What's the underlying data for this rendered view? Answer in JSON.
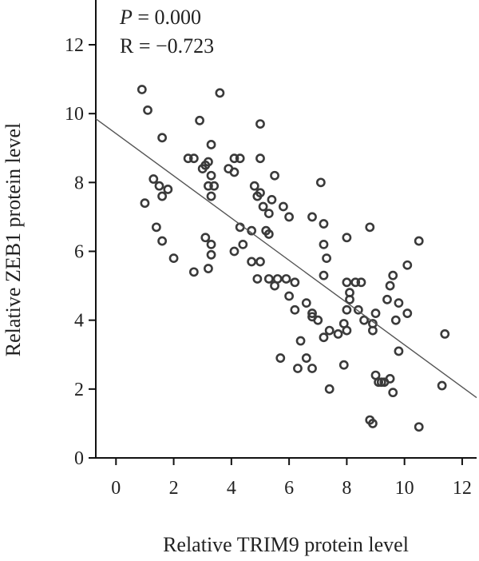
{
  "chart_data": {
    "type": "scatter",
    "xlabel": "Relative TRIM9 protein level",
    "ylabel": "Relative ZEB1 protein level",
    "xlim": [
      -0.7,
      12.5
    ],
    "ylim": [
      0,
      13.3
    ],
    "xticks": [
      0,
      2,
      4,
      6,
      8,
      10,
      12
    ],
    "yticks": [
      0,
      2,
      4,
      6,
      8,
      10,
      12
    ],
    "stats": {
      "p_symbol": "P",
      "p_value": " = 0.000",
      "r_text": "R = −0.723"
    },
    "fit_line": {
      "x0": -0.7,
      "y0": 9.85,
      "x1": 12.5,
      "y1": 1.75
    },
    "series": [
      {
        "points": [
          [
            0.9,
            10.7
          ],
          [
            1.1,
            10.1
          ],
          [
            1.6,
            9.3
          ],
          [
            2.9,
            9.8
          ],
          [
            3.6,
            10.6
          ],
          [
            5.0,
            9.7
          ],
          [
            1.0,
            7.4
          ],
          [
            1.3,
            8.1
          ],
          [
            1.5,
            7.9
          ],
          [
            1.6,
            7.6
          ],
          [
            1.8,
            7.8
          ],
          [
            1.4,
            6.7
          ],
          [
            1.6,
            6.3
          ],
          [
            2.0,
            5.8
          ],
          [
            2.5,
            8.7
          ],
          [
            2.7,
            8.7
          ],
          [
            3.0,
            8.4
          ],
          [
            3.1,
            8.5
          ],
          [
            3.2,
            8.6
          ],
          [
            3.3,
            9.1
          ],
          [
            3.3,
            8.2
          ],
          [
            3.2,
            7.9
          ],
          [
            3.4,
            7.9
          ],
          [
            3.3,
            7.6
          ],
          [
            3.1,
            6.4
          ],
          [
            3.3,
            6.2
          ],
          [
            3.3,
            5.9
          ],
          [
            3.2,
            5.5
          ],
          [
            2.7,
            5.4
          ],
          [
            3.9,
            8.4
          ],
          [
            4.1,
            8.7
          ],
          [
            4.3,
            8.7
          ],
          [
            4.1,
            8.3
          ],
          [
            4.1,
            6.0
          ],
          [
            4.3,
            6.7
          ],
          [
            4.4,
            6.2
          ],
          [
            4.7,
            6.6
          ],
          [
            4.7,
            5.7
          ],
          [
            5.0,
            5.7
          ],
          [
            4.9,
            5.2
          ],
          [
            4.9,
            7.6
          ],
          [
            4.8,
            7.9
          ],
          [
            5.0,
            7.7
          ],
          [
            5.0,
            8.7
          ],
          [
            5.1,
            7.3
          ],
          [
            5.3,
            7.1
          ],
          [
            5.3,
            6.5
          ],
          [
            5.2,
            6.6
          ],
          [
            5.4,
            7.5
          ],
          [
            5.5,
            8.2
          ],
          [
            5.8,
            7.3
          ],
          [
            6.0,
            7.0
          ],
          [
            5.3,
            5.2
          ],
          [
            5.6,
            5.2
          ],
          [
            5.9,
            5.2
          ],
          [
            6.2,
            5.1
          ],
          [
            5.5,
            5.0
          ],
          [
            6.0,
            4.7
          ],
          [
            6.6,
            4.5
          ],
          [
            6.2,
            4.3
          ],
          [
            6.8,
            4.2
          ],
          [
            6.8,
            7.0
          ],
          [
            7.1,
            8.0
          ],
          [
            7.2,
            6.8
          ],
          [
            7.2,
            6.2
          ],
          [
            7.3,
            5.8
          ],
          [
            7.2,
            5.3
          ],
          [
            8.0,
            6.4
          ],
          [
            8.8,
            6.7
          ],
          [
            6.8,
            4.1
          ],
          [
            7.0,
            4.0
          ],
          [
            7.2,
            3.5
          ],
          [
            7.4,
            3.7
          ],
          [
            7.7,
            3.6
          ],
          [
            6.4,
            3.4
          ],
          [
            5.7,
            2.9
          ],
          [
            6.3,
            2.6
          ],
          [
            6.6,
            2.9
          ],
          [
            6.8,
            2.6
          ],
          [
            7.4,
            2.0
          ],
          [
            7.9,
            2.7
          ],
          [
            7.9,
            3.9
          ],
          [
            8.0,
            3.7
          ],
          [
            8.0,
            4.3
          ],
          [
            8.1,
            4.8
          ],
          [
            8.0,
            5.1
          ],
          [
            8.3,
            5.1
          ],
          [
            8.5,
            5.1
          ],
          [
            8.1,
            4.6
          ],
          [
            8.4,
            4.3
          ],
          [
            8.6,
            4.0
          ],
          [
            8.9,
            3.9
          ],
          [
            8.9,
            3.7
          ],
          [
            9.0,
            4.2
          ],
          [
            9.4,
            4.6
          ],
          [
            9.5,
            5.0
          ],
          [
            9.6,
            5.3
          ],
          [
            9.7,
            4.0
          ],
          [
            9.8,
            4.5
          ],
          [
            10.1,
            5.6
          ],
          [
            10.5,
            6.3
          ],
          [
            10.1,
            4.2
          ],
          [
            9.8,
            3.1
          ],
          [
            9.0,
            2.4
          ],
          [
            9.1,
            2.2
          ],
          [
            9.2,
            2.2
          ],
          [
            9.3,
            2.2
          ],
          [
            9.5,
            2.3
          ],
          [
            9.6,
            1.9
          ],
          [
            8.8,
            1.1
          ],
          [
            8.9,
            1.0
          ],
          [
            10.5,
            0.9
          ],
          [
            11.3,
            2.1
          ],
          [
            11.4,
            3.6
          ]
        ]
      }
    ]
  }
}
